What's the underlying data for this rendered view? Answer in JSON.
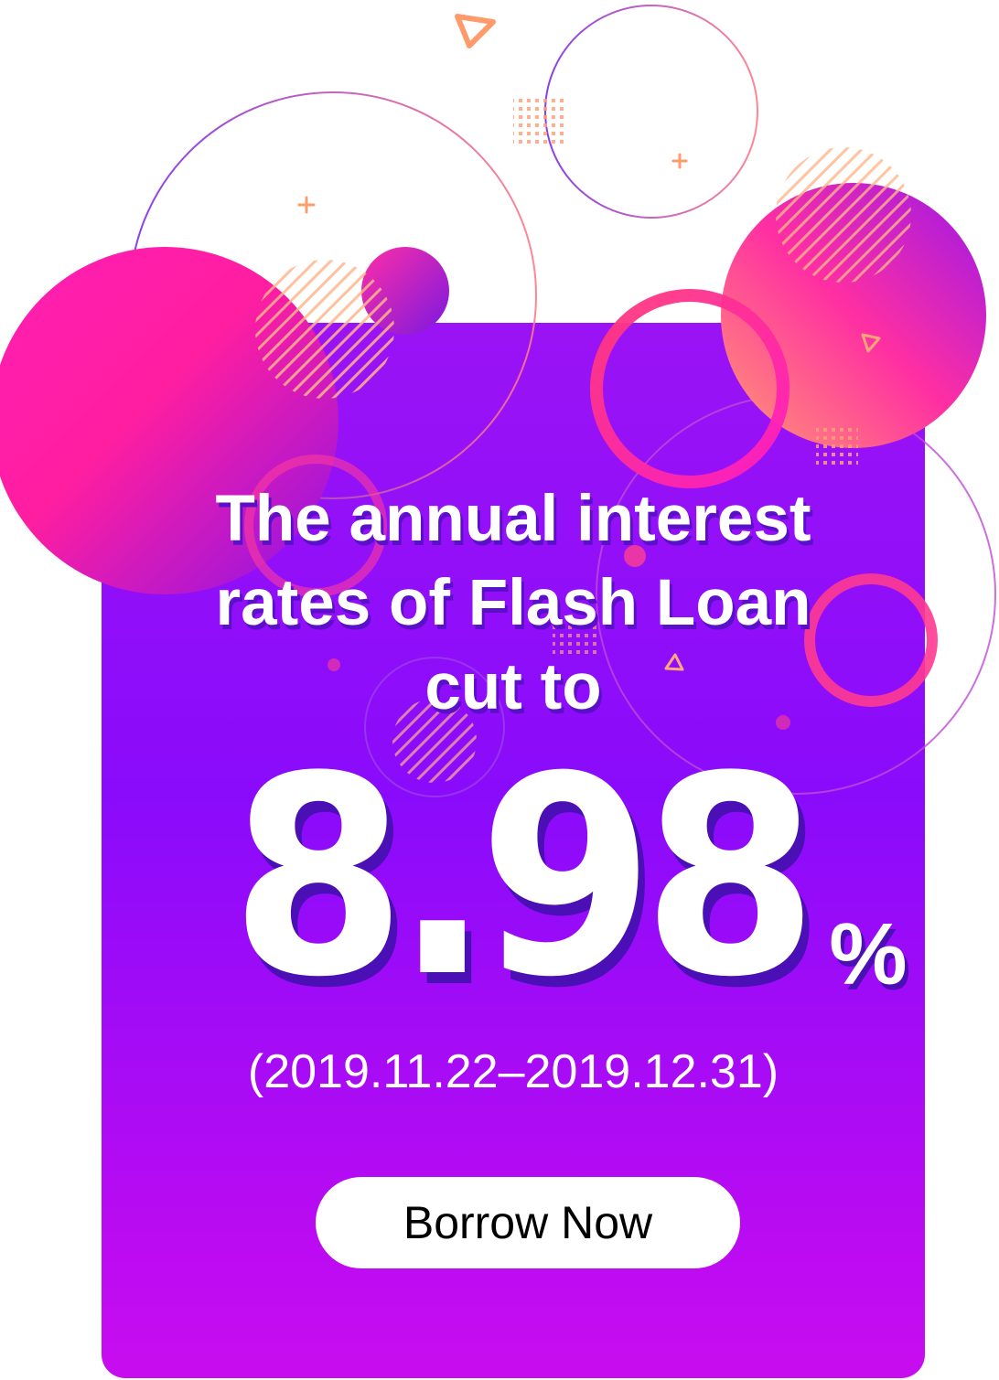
{
  "colors": {
    "card_top": "#9a13f5",
    "card_bottom": "#c90cf0",
    "accent_pink": "#ff2fa2",
    "accent_orange": "#ff9a6b",
    "text": "#ffffff",
    "button_bg": "#ffffff",
    "button_text": "#000000"
  },
  "headline": {
    "line1": "The annual interest",
    "line2": "rates of Flash Loan",
    "line3": "cut to"
  },
  "rate": {
    "value": "8.98",
    "unit": "%"
  },
  "period": "(2019.11.22–2019.12.31)",
  "cta": {
    "label": "Borrow Now"
  },
  "icons": [
    "triangle-outline-icon",
    "plus-icon",
    "dot-grid-pattern",
    "stripe-pattern"
  ]
}
